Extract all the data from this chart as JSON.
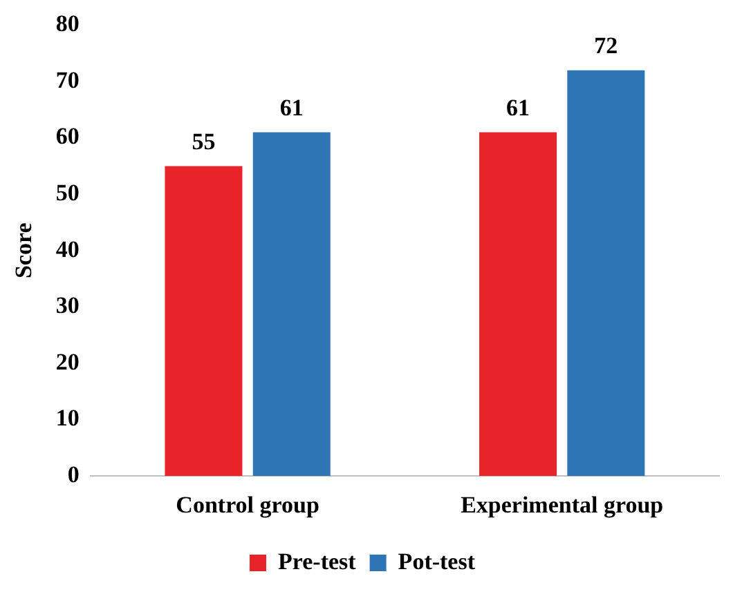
{
  "chart_data": {
    "type": "bar",
    "ylabel": "Score",
    "categories": [
      "Control group",
      "Experimental group"
    ],
    "series": [
      {
        "name": "Pre-test",
        "color": "#e8242a",
        "values": [
          55,
          61
        ]
      },
      {
        "name": "Pot-test",
        "color": "#2e75b6",
        "values": [
          61,
          72
        ]
      }
    ],
    "ylim": [
      0,
      80
    ],
    "yticks": [
      0,
      10,
      20,
      30,
      40,
      50,
      60,
      70,
      80
    ],
    "grid": false,
    "legend": "bottom",
    "data_labels": true
  }
}
